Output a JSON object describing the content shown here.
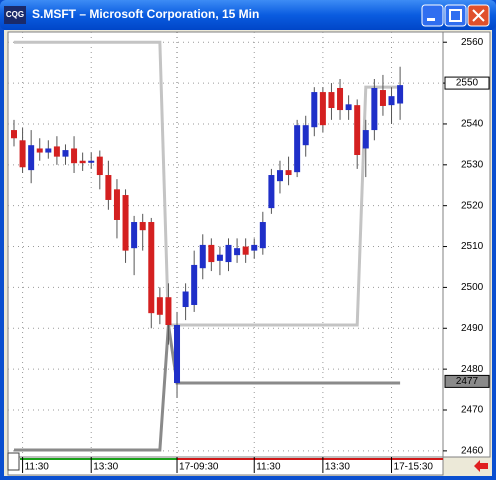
{
  "window": {
    "app_icon": "CQG",
    "title": "S.MSFT – Microsoft Corporation, 15 Min"
  },
  "chart_data": {
    "type": "candlestick",
    "categories": [
      null,
      "11:30",
      null,
      null,
      null,
      null,
      null,
      null,
      null,
      "13:30",
      null,
      null,
      null,
      null,
      null,
      null,
      null,
      null,
      null,
      "17-09:30",
      null,
      null,
      null,
      null,
      null,
      null,
      null,
      null,
      "11:30",
      null,
      null,
      null,
      null,
      null,
      null,
      null,
      "13:30",
      null,
      null,
      null,
      null,
      null,
      null,
      null,
      "17-15:30",
      null
    ],
    "open": [
      2538.5,
      2536,
      2528.7,
      2534,
      2533,
      2534.5,
      2532,
      2534,
      2531,
      2530.5,
      2532,
      2527.5,
      2524,
      2522.6,
      2509.6,
      2516,
      2516,
      2497.6,
      2497.6,
      2476.6,
      2495.2,
      2495.7,
      2504.7,
      2510.4,
      2506.5,
      2506.2,
      2507.9,
      2510,
      2509,
      2509.6,
      2519.4,
      2526,
      2528.7,
      2528.2,
      2534.8,
      2539.2,
      2547.8,
      2547.8,
      2548.8,
      2543.4,
      2544.6,
      2534,
      2538.5,
      2548.3,
      2544.6,
      2545
    ],
    "high": [
      2541,
      2539,
      2538.5,
      2536.5,
      2536,
      2537,
      2535,
      2537,
      2533,
      2533,
      2533.5,
      2531,
      2526.5,
      2524,
      2517.5,
      2518,
      2517,
      2500,
      2501,
      2494,
      2501,
      2509,
      2513,
      2512,
      2510,
      2512,
      2512,
      2512,
      2512,
      2518.5,
      2529,
      2531,
      2532,
      2541,
      2542,
      2549,
      2549,
      2550,
      2551,
      2547,
      2546,
      2541,
      2551,
      2552,
      2549,
      2554
    ],
    "low": [
      2534.5,
      2528,
      2525.5,
      2531,
      2531.5,
      2530,
      2530,
      2528,
      2528.5,
      2529,
      2524,
      2519,
      2512,
      2506,
      2503,
      2509,
      2490,
      2491,
      2486,
      2473,
      2492,
      2494,
      2502,
      2504,
      2503,
      2504,
      2506,
      2506,
      2507,
      2508,
      2518,
      2523,
      2525,
      2527,
      2532,
      2537,
      2538,
      2541,
      2541,
      2541,
      2529,
      2527,
      2536,
      2542,
      2540,
      2541
    ],
    "close": [
      2536.5,
      2529.4,
      2534.8,
      2533,
      2534,
      2532,
      2533.6,
      2530.4,
      2530.4,
      2531,
      2527.5,
      2521.4,
      2516.5,
      2509,
      2516,
      2514,
      2493.7,
      2493.3,
      2490.8,
      2490.8,
      2499,
      2505.5,
      2510.4,
      2506.2,
      2508,
      2510.4,
      2509.6,
      2508,
      2510.4,
      2516,
      2527.5,
      2528.7,
      2527.5,
      2539.7,
      2539.7,
      2547.8,
      2539.7,
      2543.9,
      2543.4,
      2544.8,
      2532.4,
      2538.5,
      2548.8,
      2544.4,
      2546.8,
      2549.5
    ],
    "up_color": "#1f2fc8",
    "down_color": "#d42020",
    "lines": [
      {
        "color": "#c4c4c4",
        "values": [
          2560,
          2560,
          2560,
          2560,
          2560,
          2560,
          2560,
          2560,
          2560,
          2560,
          2560,
          2560,
          2560,
          2560,
          2560,
          2560,
          2560,
          2560,
          2490.8,
          2490.8,
          2490.8,
          2490.8,
          2490.8,
          2490.8,
          2490.8,
          2490.8,
          2490.8,
          2490.8,
          2490.8,
          2490.8,
          2490.8,
          2490.8,
          2490.8,
          2490.8,
          2490.8,
          2490.8,
          2490.8,
          2490.8,
          2490.8,
          2490.8,
          2490.8,
          2549,
          2549,
          2549,
          2549,
          2549
        ]
      },
      {
        "color": "#8a8a8a",
        "values": [
          2460.2,
          2460.2,
          2460.2,
          2460.2,
          2460.2,
          2460.2,
          2460.2,
          2460.2,
          2460.2,
          2460.2,
          2460.2,
          2460.2,
          2460.2,
          2460.2,
          2460.2,
          2460.2,
          2460.2,
          2460.2,
          2490.8,
          2476.6,
          2476.6,
          2476.6,
          2476.6,
          2476.6,
          2476.6,
          2476.6,
          2476.6,
          2476.6,
          2476.6,
          2476.6,
          2476.6,
          2476.6,
          2476.6,
          2476.6,
          2476.6,
          2476.6,
          2476.6,
          2476.6,
          2476.6,
          2476.6,
          2476.6,
          2476.6,
          2476.6,
          2476.6,
          2476.6,
          2476.6
        ]
      }
    ],
    "markers": [
      {
        "value": 2550,
        "fill": "#ffffff",
        "text_color": "#000000"
      },
      {
        "value": 2477,
        "fill": "#8a8a8a",
        "text_color": "#000000"
      }
    ],
    "ylim": [
      2458.5,
      2562.5
    ],
    "yticks": [
      2460,
      2470,
      2480,
      2490,
      2500,
      2510,
      2520,
      2530,
      2540,
      2550,
      2560
    ],
    "grid": true
  }
}
